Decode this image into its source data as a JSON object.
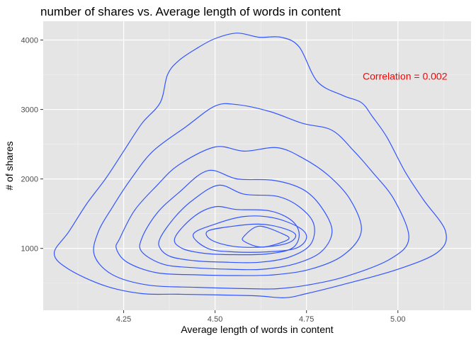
{
  "chart_data": {
    "type": "density_contour",
    "title": "number of shares vs. Average length of words in content",
    "xlabel": "Average length of words in content",
    "ylabel": "# of shares",
    "xlim": [
      4.03,
      5.2
    ],
    "ylim": [
      110,
      4270
    ],
    "x_ticks": [
      4.25,
      4.5,
      4.75,
      5.0
    ],
    "x_tick_labels": [
      "4.25",
      "4.50",
      "4.75",
      "5.00"
    ],
    "y_ticks": [
      1000,
      2000,
      3000,
      4000
    ],
    "y_tick_labels": [
      "1000",
      "2000",
      "3000",
      "4000"
    ],
    "grid": true,
    "line_color": "#3355ff",
    "panel_background": "#e5e5e5",
    "annotation": {
      "text": "Correlation = 0.002",
      "color": "#ff0000",
      "x": 5.0,
      "y": 3480
    },
    "series": [
      {
        "level": 1,
        "points": [
          [
            4.1,
            1240
          ],
          [
            4.15,
            1650
          ],
          [
            4.2,
            2000
          ],
          [
            4.25,
            2400
          ],
          [
            4.3,
            2800
          ],
          [
            4.35,
            3100
          ],
          [
            4.37,
            3500
          ],
          [
            4.4,
            3700
          ],
          [
            4.45,
            3880
          ],
          [
            4.5,
            4020
          ],
          [
            4.56,
            4100
          ],
          [
            4.62,
            4040
          ],
          [
            4.68,
            4040
          ],
          [
            4.73,
            3900
          ],
          [
            4.78,
            3400
          ],
          [
            4.85,
            3200
          ],
          [
            4.9,
            3100
          ],
          [
            4.93,
            2900
          ],
          [
            4.97,
            2600
          ],
          [
            5.02,
            2100
          ],
          [
            5.07,
            1700
          ],
          [
            5.13,
            1250
          ],
          [
            5.11,
            950
          ],
          [
            5.0,
            700
          ],
          [
            4.85,
            480
          ],
          [
            4.75,
            350
          ],
          [
            4.69,
            290
          ],
          [
            4.6,
            320
          ],
          [
            4.4,
            340
          ],
          [
            4.3,
            350
          ],
          [
            4.2,
            460
          ],
          [
            4.1,
            700
          ],
          [
            4.06,
            930
          ]
        ]
      },
      {
        "level": 2,
        "points": [
          [
            4.18,
            1230
          ],
          [
            4.22,
            1600
          ],
          [
            4.27,
            2000
          ],
          [
            4.33,
            2400
          ],
          [
            4.42,
            2750
          ],
          [
            4.5,
            3050
          ],
          [
            4.56,
            3070
          ],
          [
            4.65,
            2970
          ],
          [
            4.74,
            2800
          ],
          [
            4.82,
            2700
          ],
          [
            4.88,
            2400
          ],
          [
            4.93,
            2100
          ],
          [
            4.99,
            1700
          ],
          [
            5.03,
            1150
          ],
          [
            4.98,
            850
          ],
          [
            4.86,
            600
          ],
          [
            4.75,
            470
          ],
          [
            4.67,
            420
          ],
          [
            4.6,
            420
          ],
          [
            4.45,
            440
          ],
          [
            4.32,
            470
          ],
          [
            4.22,
            620
          ],
          [
            4.17,
            900
          ]
        ]
      },
      {
        "level": 3,
        "points": [
          [
            4.24,
            1150
          ],
          [
            4.28,
            1550
          ],
          [
            4.34,
            1900
          ],
          [
            4.4,
            2200
          ],
          [
            4.5,
            2460
          ],
          [
            4.58,
            2400
          ],
          [
            4.67,
            2450
          ],
          [
            4.74,
            2300
          ],
          [
            4.81,
            2050
          ],
          [
            4.87,
            1700
          ],
          [
            4.9,
            1250
          ],
          [
            4.85,
            900
          ],
          [
            4.76,
            700
          ],
          [
            4.66,
            620
          ],
          [
            4.56,
            610
          ],
          [
            4.45,
            620
          ],
          [
            4.34,
            650
          ],
          [
            4.26,
            800
          ],
          [
            4.23,
            1000
          ]
        ]
      },
      {
        "level": 4,
        "points": [
          [
            4.3,
            1150
          ],
          [
            4.34,
            1500
          ],
          [
            4.4,
            1800
          ],
          [
            4.48,
            2120
          ],
          [
            4.56,
            2000
          ],
          [
            4.66,
            1980
          ],
          [
            4.74,
            1850
          ],
          [
            4.79,
            1600
          ],
          [
            4.82,
            1250
          ],
          [
            4.79,
            950
          ],
          [
            4.72,
            780
          ],
          [
            4.63,
            700
          ],
          [
            4.54,
            700
          ],
          [
            4.45,
            720
          ],
          [
            4.36,
            770
          ],
          [
            4.3,
            950
          ]
        ]
      },
      {
        "level": 5,
        "points": [
          [
            4.35,
            1150
          ],
          [
            4.39,
            1450
          ],
          [
            4.44,
            1700
          ],
          [
            4.51,
            1910
          ],
          [
            4.58,
            1780
          ],
          [
            4.67,
            1750
          ],
          [
            4.73,
            1600
          ],
          [
            4.77,
            1350
          ],
          [
            4.76,
            1050
          ],
          [
            4.7,
            870
          ],
          [
            4.62,
            800
          ],
          [
            4.54,
            800
          ],
          [
            4.45,
            820
          ],
          [
            4.38,
            880
          ],
          [
            4.35,
            1000
          ]
        ]
      },
      {
        "level": 6,
        "points": [
          [
            4.39,
            1150
          ],
          [
            4.44,
            1450
          ],
          [
            4.5,
            1600
          ],
          [
            4.56,
            1560
          ],
          [
            4.65,
            1540
          ],
          [
            4.71,
            1400
          ],
          [
            4.73,
            1200
          ],
          [
            4.71,
            1000
          ],
          [
            4.64,
            920
          ],
          [
            4.55,
            910
          ],
          [
            4.47,
            930
          ],
          [
            4.41,
            1000
          ]
        ]
      },
      {
        "level": 6,
        "points": [
          [
            4.44,
            1200
          ],
          [
            4.5,
            1350
          ],
          [
            4.58,
            1460
          ],
          [
            4.66,
            1440
          ],
          [
            4.73,
            1300
          ],
          [
            4.75,
            1150
          ],
          [
            4.72,
            1000
          ],
          [
            4.64,
            950
          ],
          [
            4.55,
            950
          ],
          [
            4.48,
            1000
          ]
        ]
      },
      {
        "level": 7,
        "points": [
          [
            4.48,
            1250
          ],
          [
            4.55,
            1320
          ],
          [
            4.62,
            1350
          ],
          [
            4.68,
            1300
          ],
          [
            4.72,
            1200
          ],
          [
            4.7,
            1080
          ],
          [
            4.63,
            1020
          ],
          [
            4.55,
            1030
          ],
          [
            4.49,
            1120
          ]
        ]
      },
      {
        "level": 8,
        "points": [
          [
            4.58,
            1180
          ],
          [
            4.62,
            1320
          ],
          [
            4.68,
            1220
          ],
          [
            4.7,
            1130
          ],
          [
            4.63,
            1020
          ],
          [
            4.58,
            1100
          ]
        ]
      }
    ]
  }
}
